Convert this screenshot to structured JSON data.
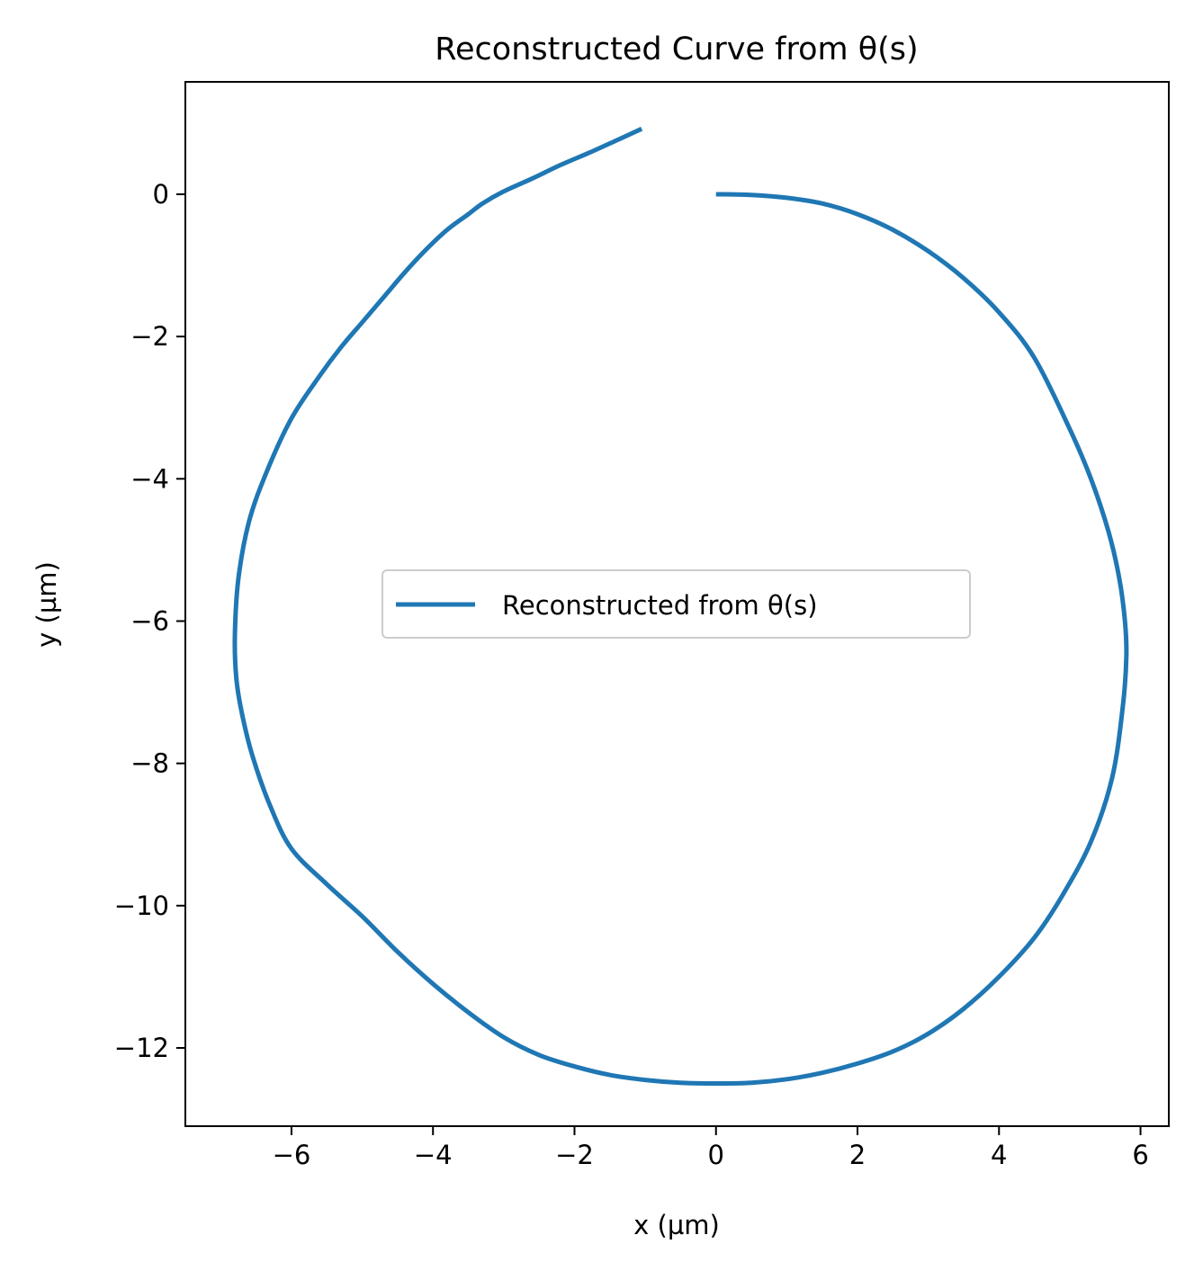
{
  "chart_data": {
    "type": "line",
    "title": "Reconstructed Curve from θ(s)",
    "xlabel": "x (µm)",
    "ylabel": "y (µm)",
    "xlim": [
      -7.5,
      6.4
    ],
    "ylim": [
      -13.1,
      1.58
    ],
    "xticks": [
      -6,
      -4,
      -2,
      0,
      2,
      4,
      6
    ],
    "yticks": [
      0,
      -2,
      -4,
      -6,
      -8,
      -10,
      -12
    ],
    "xtick_labels": [
      "−6",
      "−4",
      "−2",
      "0",
      "2",
      "4",
      "6"
    ],
    "ytick_labels": [
      "0",
      "−2",
      "−4",
      "−6",
      "−8",
      "−10",
      "−12"
    ],
    "grid": false,
    "legend": {
      "position": "center",
      "entries": [
        "Reconstructed from θ(s)"
      ]
    },
    "colors": {
      "series": "#1f77b4",
      "axes": "#000000",
      "legend_border": "#cccccc"
    },
    "series": [
      {
        "name": "Reconstructed from θ(s)",
        "x": [
          0,
          0.5,
          1.0,
          1.5,
          2.0,
          2.5,
          3.0,
          3.5,
          4.0,
          4.5,
          5.0,
          5.3,
          5.55,
          5.7,
          5.78,
          5.8,
          5.75,
          5.6,
          5.3,
          4.9,
          4.5,
          4.0,
          3.5,
          3.0,
          2.5,
          2.0,
          1.5,
          1.0,
          0.5,
          0.0,
          -0.5,
          -1.0,
          -1.5,
          -2.0,
          -2.5,
          -3.0,
          -3.5,
          -4.0,
          -4.5,
          -5.0,
          -5.5,
          -6.0,
          -6.3,
          -6.55,
          -6.7,
          -6.78,
          -6.8,
          -6.75,
          -6.6,
          -6.35,
          -6.0,
          -5.6,
          -5.3,
          -5.0,
          -4.7,
          -4.4,
          -4.1,
          -3.8,
          -3.5,
          -3.3,
          -3.0,
          -2.6,
          -2.2,
          -1.8,
          -1.4,
          -1.05
        ],
        "y": [
          0.0,
          -0.01,
          -0.05,
          -0.13,
          -0.28,
          -0.5,
          -0.8,
          -1.18,
          -1.66,
          -2.3,
          -3.3,
          -4.0,
          -4.75,
          -5.4,
          -6.0,
          -6.5,
          -7.2,
          -8.2,
          -9.1,
          -9.85,
          -10.45,
          -11.0,
          -11.45,
          -11.8,
          -12.05,
          -12.22,
          -12.35,
          -12.44,
          -12.49,
          -12.5,
          -12.49,
          -12.45,
          -12.38,
          -12.26,
          -12.1,
          -11.85,
          -11.5,
          -11.1,
          -10.65,
          -10.15,
          -9.7,
          -9.2,
          -8.6,
          -7.9,
          -7.3,
          -6.8,
          -6.2,
          -5.4,
          -4.6,
          -3.9,
          -3.15,
          -2.55,
          -2.15,
          -1.8,
          -1.45,
          -1.1,
          -0.78,
          -0.5,
          -0.28,
          -0.13,
          0.04,
          0.22,
          0.41,
          0.58,
          0.76,
          0.92
        ]
      }
    ]
  }
}
